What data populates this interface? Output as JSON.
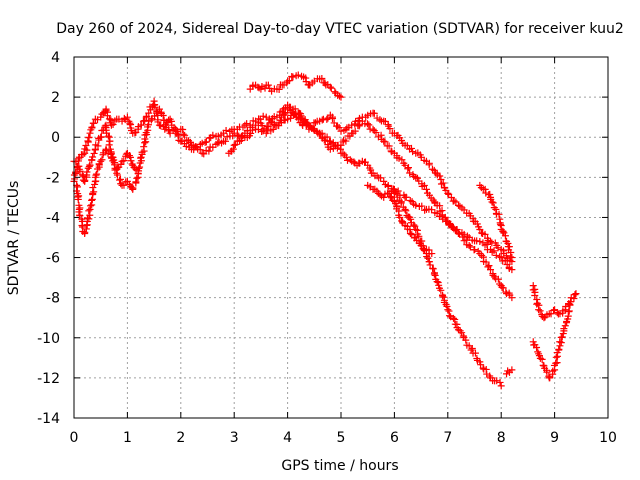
{
  "chart_data": {
    "type": "scatter",
    "title": "Day 260 of 2024, Sidereal Day-to-day VTEC variation (SDTVAR) for receiver kuu2",
    "xlabel": "GPS time / hours",
    "ylabel": "SDTVAR / TECUs",
    "xlim": [
      0,
      10
    ],
    "ylim": [
      -14,
      4
    ],
    "x_ticks": [
      "0",
      "1",
      "2",
      "3",
      "4",
      "5",
      "6",
      "7",
      "8",
      "9",
      "10"
    ],
    "y_ticks": [
      "4",
      "2",
      "0",
      "-2",
      "-4",
      "-6",
      "-8",
      "-10",
      "-12",
      "-14"
    ],
    "grid": true,
    "marker": "+",
    "color": "#ff0000",
    "series": [
      {
        "name": "trace-a",
        "x": [
          0.0,
          0.1,
          0.2,
          0.3,
          0.4,
          0.5,
          0.6,
          0.7,
          0.8,
          0.9,
          1.0,
          1.1,
          1.2,
          1.3,
          1.4,
          1.5,
          1.6,
          1.7,
          1.8,
          1.9,
          2.0,
          2.2,
          2.4,
          2.6,
          2.8,
          3.0,
          3.2,
          3.4,
          3.6,
          3.8,
          4.0,
          4.2,
          4.4,
          4.6,
          4.8,
          5.0,
          5.2,
          5.4,
          5.6,
          5.8,
          6.0,
          6.2,
          6.4,
          6.6,
          6.8,
          7.0,
          7.2,
          7.4,
          7.6,
          7.8,
          8.0,
          8.2
        ],
        "y": [
          -2.2,
          -1.0,
          -0.8,
          0.2,
          0.9,
          1.0,
          1.4,
          0.6,
          0.9,
          0.8,
          1.0,
          0.2,
          0.4,
          0.8,
          1.2,
          1.8,
          0.6,
          0.4,
          0.9,
          0.4,
          -0.2,
          -0.6,
          -0.3,
          0.1,
          0.2,
          0.4,
          0.6,
          0.8,
          1.0,
          0.6,
          0.9,
          1.2,
          0.5,
          0.8,
          1.1,
          0.3,
          0.6,
          1.0,
          1.2,
          0.8,
          0.2,
          -0.4,
          -0.8,
          -1.2,
          -1.8,
          -2.8,
          -3.4,
          -3.8,
          -4.6,
          -5.2,
          -5.6,
          -6.2
        ]
      },
      {
        "name": "trace-b",
        "x": [
          0.0,
          0.1,
          0.2,
          0.3,
          0.4,
          0.5,
          0.6,
          0.7,
          0.8,
          0.9,
          1.0,
          1.1,
          1.2,
          1.4,
          1.6,
          1.8,
          2.0,
          2.2,
          2.4,
          2.6,
          2.8,
          3.0,
          3.2,
          3.4,
          3.6,
          3.8,
          4.0,
          4.2,
          4.4,
          4.6,
          4.8,
          5.0,
          5.2,
          5.4,
          5.6,
          5.8,
          6.0,
          6.2,
          6.4,
          6.6,
          6.8,
          7.0,
          7.2,
          7.4,
          7.6,
          7.8,
          8.0,
          8.2
        ],
        "y": [
          -1.2,
          -1.6,
          -2.2,
          -1.4,
          -0.6,
          0.0,
          0.6,
          -0.8,
          -1.8,
          -2.4,
          -2.2,
          -2.6,
          -2.0,
          0.8,
          1.4,
          0.2,
          0.4,
          -0.4,
          -0.8,
          -0.5,
          -0.2,
          0.2,
          0.0,
          0.4,
          0.2,
          0.6,
          1.4,
          0.9,
          0.4,
          0.2,
          -0.6,
          -0.4,
          0.2,
          0.8,
          0.4,
          -0.2,
          -0.8,
          -1.4,
          -2.0,
          -2.6,
          -3.4,
          -4.2,
          -4.8,
          -5.0,
          -5.2,
          -5.6,
          -6.0,
          -6.6
        ]
      },
      {
        "name": "trace-c",
        "x": [
          0.05,
          0.1,
          0.15,
          0.2,
          0.25,
          0.3,
          0.35,
          0.4,
          0.5,
          0.6,
          0.7,
          0.8,
          0.9,
          1.0,
          1.1,
          1.2
        ],
        "y": [
          -2.4,
          -3.6,
          -4.4,
          -4.8,
          -4.2,
          -3.6,
          -2.8,
          -2.0,
          -1.2,
          -0.6,
          -1.0,
          -1.6,
          -1.2,
          -0.8,
          -1.4,
          -1.8
        ]
      },
      {
        "name": "trace-d",
        "x": [
          3.3,
          3.4,
          3.5,
          3.6,
          3.7,
          3.8,
          3.9,
          4.0,
          4.1,
          4.2,
          4.3,
          4.4,
          4.5,
          4.6,
          4.7,
          4.8,
          4.9,
          5.0
        ],
        "y": [
          2.4,
          2.6,
          2.4,
          2.6,
          2.3,
          2.4,
          2.6,
          2.8,
          3.0,
          3.1,
          3.0,
          2.6,
          2.8,
          2.9,
          2.7,
          2.5,
          2.2,
          2.0
        ]
      },
      {
        "name": "trace-e",
        "x": [
          2.9,
          3.0,
          3.1,
          3.2,
          3.3,
          3.4,
          3.5,
          3.6,
          3.7,
          3.8,
          3.9,
          4.0,
          4.1,
          4.2,
          4.3,
          4.4,
          4.5,
          4.6,
          4.7,
          4.8,
          4.9,
          5.0,
          5.1,
          5.2,
          5.3,
          5.4,
          5.5,
          5.6,
          5.8,
          6.0,
          6.2,
          6.4,
          6.6,
          6.8,
          7.0,
          7.2,
          7.4,
          7.6,
          7.8,
          8.0
        ],
        "y": [
          -0.8,
          -0.4,
          -0.2,
          0.2,
          0.5,
          0.6,
          0.7,
          0.4,
          0.8,
          1.0,
          1.3,
          1.6,
          1.4,
          1.2,
          0.8,
          0.6,
          0.4,
          0.2,
          0.0,
          -0.2,
          -0.4,
          -0.8,
          -1.0,
          -1.2,
          -1.4,
          -1.2,
          -1.4,
          -1.8,
          -2.2,
          -2.8,
          -3.6,
          -4.6,
          -5.8,
          -7.2,
          -8.6,
          -9.6,
          -10.4,
          -11.2,
          -12.0,
          -12.4
        ]
      },
      {
        "name": "trace-f",
        "x": [
          5.5,
          5.6,
          5.7,
          5.8,
          5.9,
          6.0,
          6.2,
          6.4,
          6.6,
          6.8,
          7.0,
          7.2,
          7.4,
          7.6,
          7.8,
          8.0,
          8.1,
          8.2
        ],
        "y": [
          -2.4,
          -2.6,
          -2.8,
          -3.0,
          -2.8,
          -2.6,
          -3.0,
          -3.4,
          -3.6,
          -3.8,
          -4.2,
          -4.8,
          -5.4,
          -5.8,
          -6.6,
          -7.4,
          -7.8,
          -8.0
        ]
      },
      {
        "name": "trace-g",
        "x": [
          5.9,
          6.0,
          6.1,
          6.2,
          6.3,
          6.4,
          6.5,
          6.6,
          6.7
        ],
        "y": [
          -2.8,
          -3.2,
          -4.0,
          -4.4,
          -4.8,
          -5.0,
          -5.4,
          -5.6,
          -5.8
        ]
      },
      {
        "name": "trace-h",
        "x": [
          7.6,
          7.7,
          7.8,
          7.9,
          8.0,
          8.1,
          8.2
        ],
        "y": [
          -2.4,
          -2.6,
          -3.0,
          -3.6,
          -4.4,
          -5.2,
          -6.0
        ]
      },
      {
        "name": "trace-i",
        "x": [
          8.1,
          8.2
        ],
        "y": [
          -11.8,
          -11.6
        ]
      },
      {
        "name": "trace-j",
        "x": [
          8.6,
          8.7,
          8.8,
          8.9,
          9.0,
          9.1,
          9.2,
          9.3,
          9.4
        ],
        "y": [
          -7.4,
          -8.6,
          -9.0,
          -8.8,
          -8.6,
          -8.8,
          -8.6,
          -8.2,
          -7.8
        ]
      },
      {
        "name": "trace-k",
        "x": [
          8.6,
          8.7,
          8.8,
          8.9,
          9.0,
          9.1,
          9.2,
          9.3
        ],
        "y": [
          -10.2,
          -10.8,
          -11.4,
          -12.0,
          -11.6,
          -10.4,
          -9.4,
          -8.2
        ]
      }
    ]
  }
}
